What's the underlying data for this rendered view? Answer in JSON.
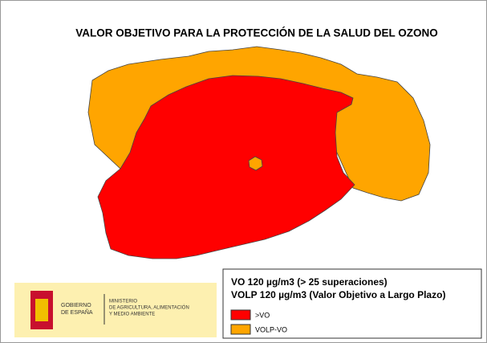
{
  "title": "VALOR OBJETIVO PARA LA PROTECCIÓN DE LA SALUD DEL OZONO",
  "legend": {
    "lines": [
      "VO 120 µg/m3 (> 25 superaciones)",
      "VOLP 120 µg/m3 (Valor Objetivo a Largo Plazo)"
    ],
    "items": [
      {
        "label": ">VO",
        "color": "#ff0000"
      },
      {
        "label": "VOLP-VO",
        "color": "#ffa500"
      }
    ]
  },
  "logo": {
    "government": [
      "GOBIERNO",
      "DE ESPAÑA"
    ],
    "ministry": [
      "MINISTERIO",
      "DE AGRICULTURA, ALIMENTACIÓN",
      "Y MEDIO AMBIENTE"
    ]
  }
}
